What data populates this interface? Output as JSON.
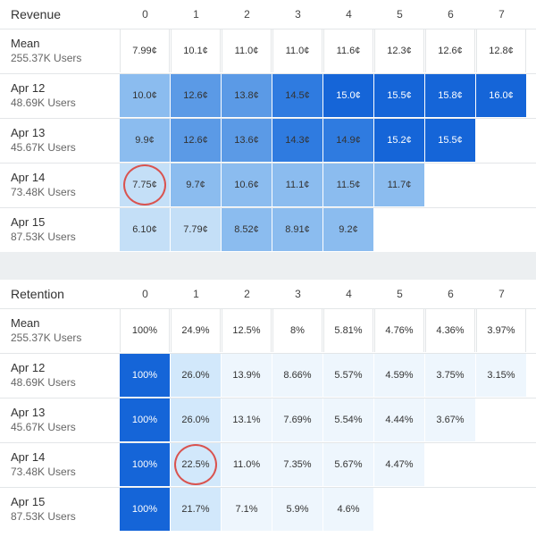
{
  "columns": [
    "0",
    "1",
    "2",
    "3",
    "4",
    "5",
    "6",
    "7"
  ],
  "chart_data": [
    {
      "type": "heatmap",
      "title": "Revenue",
      "columns": [
        "0",
        "1",
        "2",
        "3",
        "4",
        "5",
        "6",
        "7"
      ],
      "mean": {
        "label": "Mean",
        "users": "255.37K Users",
        "cells": [
          "7.99¢",
          "10.1¢",
          "11.0¢",
          "11.0¢",
          "11.6¢",
          "12.3¢",
          "12.6¢",
          "12.8¢"
        ]
      },
      "rows": [
        {
          "label": "Apr 12",
          "users": "48.69K Users",
          "cells": [
            "10.0¢",
            "12.6¢",
            "13.8¢",
            "14.5¢",
            "15.0¢",
            "15.5¢",
            "15.8¢",
            "16.0¢"
          ],
          "values": [
            10.0,
            12.6,
            13.8,
            14.5,
            15.0,
            15.5,
            15.8,
            16.0
          ]
        },
        {
          "label": "Apr 13",
          "users": "45.67K Users",
          "cells": [
            "9.9¢",
            "12.6¢",
            "13.6¢",
            "14.3¢",
            "14.9¢",
            "15.2¢",
            "15.5¢"
          ],
          "values": [
            9.9,
            12.6,
            13.6,
            14.3,
            14.9,
            15.2,
            15.5
          ]
        },
        {
          "label": "Apr 14",
          "users": "73.48K Users",
          "cells": [
            "7.75¢",
            "9.7¢",
            "10.6¢",
            "11.1¢",
            "11.5¢",
            "11.7¢"
          ],
          "values": [
            7.75,
            9.7,
            10.6,
            11.1,
            11.5,
            11.7
          ]
        },
        {
          "label": "Apr 15",
          "users": "87.53K Users",
          "cells": [
            "6.10¢",
            "7.79¢",
            "8.52¢",
            "8.91¢",
            "9.2¢"
          ],
          "values": [
            6.1,
            7.79,
            8.52,
            8.91,
            9.2
          ]
        }
      ],
      "highlight": {
        "row": 2,
        "col": 0
      }
    },
    {
      "type": "heatmap",
      "title": "Retention",
      "columns": [
        "0",
        "1",
        "2",
        "3",
        "4",
        "5",
        "6",
        "7"
      ],
      "mean": {
        "label": "Mean",
        "users": "255.37K Users",
        "cells": [
          "100%",
          "24.9%",
          "12.5%",
          "8%",
          "5.81%",
          "4.76%",
          "4.36%",
          "3.97%"
        ]
      },
      "rows": [
        {
          "label": "Apr 12",
          "users": "48.69K Users",
          "cells": [
            "100%",
            "26.0%",
            "13.9%",
            "8.66%",
            "5.57%",
            "4.59%",
            "3.75%",
            "3.15%"
          ],
          "values": [
            100,
            26.0,
            13.9,
            8.66,
            5.57,
            4.59,
            3.75,
            3.15
          ]
        },
        {
          "label": "Apr 13",
          "users": "45.67K Users",
          "cells": [
            "100%",
            "26.0%",
            "13.1%",
            "7.69%",
            "5.54%",
            "4.44%",
            "3.67%"
          ],
          "values": [
            100,
            26.0,
            13.1,
            7.69,
            5.54,
            4.44,
            3.67
          ]
        },
        {
          "label": "Apr 14",
          "users": "73.48K Users",
          "cells": [
            "100%",
            "22.5%",
            "11.0%",
            "7.35%",
            "5.67%",
            "4.47%"
          ],
          "values": [
            100,
            22.5,
            11.0,
            7.35,
            5.67,
            4.47
          ]
        },
        {
          "label": "Apr 15",
          "users": "87.53K Users",
          "cells": [
            "100%",
            "21.7%",
            "7.1%",
            "5.9%",
            "4.6%"
          ],
          "values": [
            100,
            21.7,
            7.1,
            5.9,
            4.6
          ]
        }
      ],
      "highlight": {
        "row": 2,
        "col": 1
      }
    }
  ],
  "colors": {
    "revenue": [
      "#c4dff7",
      "#8bbcef",
      "#5b9ae6",
      "#2f7be0",
      "#1565d8"
    ],
    "retention": [
      "#eef6fd",
      "#d2e8fb",
      "#1565d8"
    ],
    "highlight_circle": "#d9534f"
  }
}
